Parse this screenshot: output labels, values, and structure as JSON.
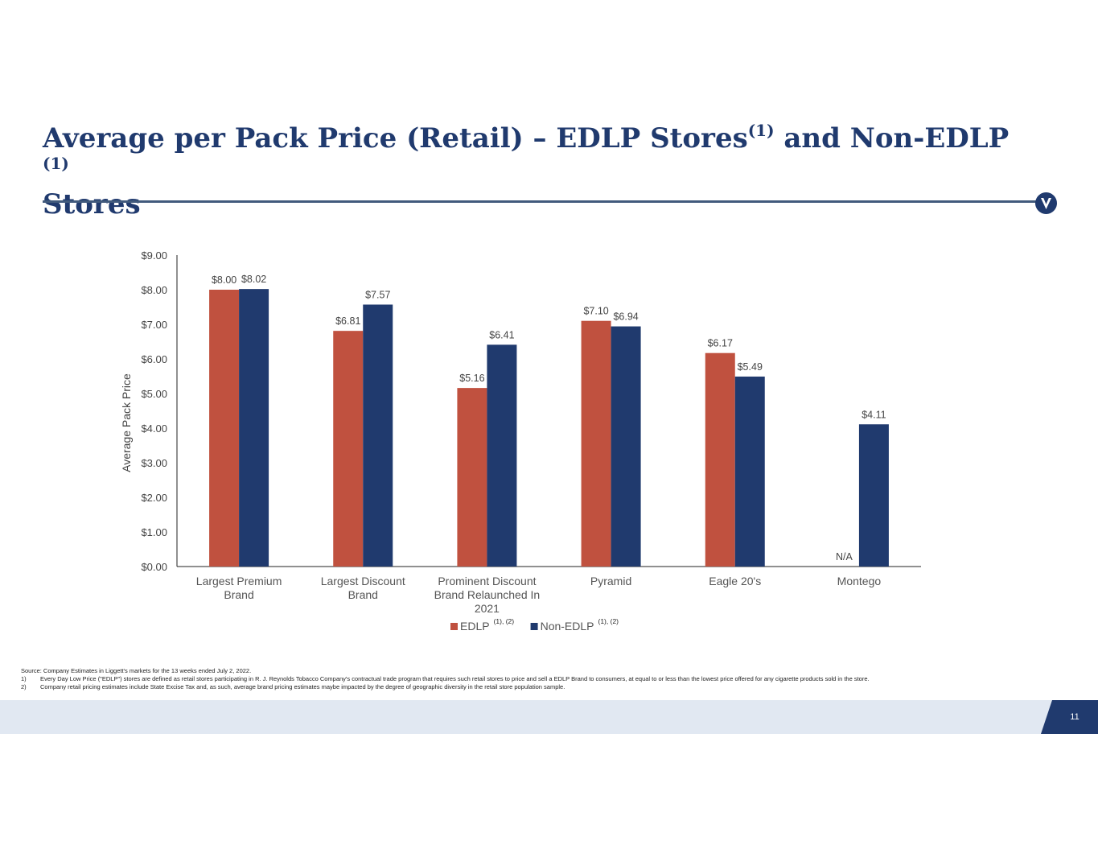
{
  "slide": {
    "title_part1": "Average per Pack Price (Retail) – EDLP Stores",
    "title_sup1": "(1)",
    "title_part2": " and Non-EDLP ",
    "title_sup2": "(1)",
    "title_part3": "Stores",
    "page_number": "11",
    "logo_letter": "V"
  },
  "colors": {
    "title": "#203a6e",
    "edlp": "#c0513f",
    "non_edlp": "#203a6e",
    "footer_band": "#e1e8f2"
  },
  "chart_data": {
    "type": "bar",
    "ylabel": "Average Pack Price",
    "xlabel": "",
    "ylim": [
      0,
      9
    ],
    "yticks": [
      "$0.00",
      "$1.00",
      "$2.00",
      "$3.00",
      "$4.00",
      "$5.00",
      "$6.00",
      "$7.00",
      "$8.00",
      "$9.00"
    ],
    "categories": [
      [
        "Largest Premium",
        "Brand"
      ],
      [
        "Largest Discount",
        "Brand"
      ],
      [
        "Prominent Discount",
        "Brand Relaunched In",
        "2021"
      ],
      [
        "Pyramid"
      ],
      [
        "Eagle 20's"
      ],
      [
        "Montego"
      ]
    ],
    "series": [
      {
        "name": "EDLP",
        "legend_sup": "(1), (2)",
        "color": "#c0513f",
        "values": [
          8.0,
          6.81,
          5.16,
          7.1,
          6.17,
          null
        ],
        "labels": [
          "$8.00",
          "$6.81",
          "$5.16",
          "$7.10",
          "$6.17",
          "N/A"
        ]
      },
      {
        "name": "Non-EDLP",
        "legend_sup": "(1), (2)",
        "color": "#203a6e",
        "values": [
          8.02,
          7.57,
          6.41,
          6.94,
          5.49,
          4.11
        ],
        "labels": [
          "$8.02",
          "$7.57",
          "$6.41",
          "$6.94",
          "$5.49",
          "$4.11"
        ]
      }
    ],
    "legend_position": "bottom",
    "grid": false
  },
  "footnotes": {
    "source": "Source: Company Estimates in Liggett's markets for the 13 weeks ended July 2, 2022.",
    "items": [
      {
        "num": "1)",
        "text": "Every Day Low Price (\"EDLP\") stores are defined as retail stores participating in R. J. Reynolds Tobacco Company's contractual trade program that requires such retail stores to price and sell a EDLP Brand to consumers, at equal to or less than the lowest price offered for any cigarette products sold in the store."
      },
      {
        "num": "2)",
        "text": "Company retail pricing estimates include State Excise Tax and, as such, average brand pricing estimates maybe impacted by the degree of geographic diversity in the retail store population sample."
      }
    ]
  }
}
